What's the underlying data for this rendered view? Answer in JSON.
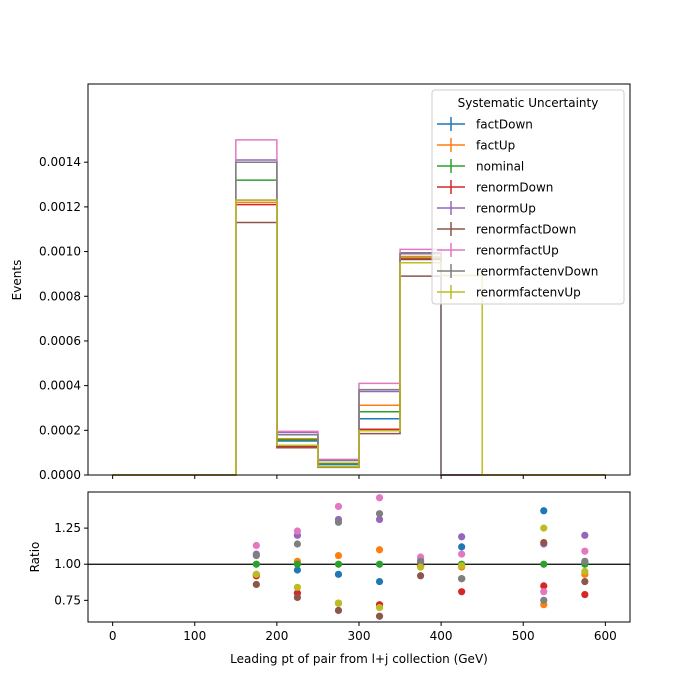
{
  "chart_data": [
    {
      "type": "line",
      "drawstyle": "steps",
      "ylabel": "Events",
      "xlim": [
        -30,
        630
      ],
      "ylim": [
        0,
        0.00175
      ],
      "yticks": [
        0,
        0.0002,
        0.0004,
        0.0006,
        0.0008,
        0.001,
        0.0012,
        0.0014
      ],
      "ytick_labels": [
        "0.0000",
        "0.0002",
        "0.0004",
        "0.0006",
        "0.0008",
        "0.0010",
        "0.0012",
        "0.0014"
      ],
      "bin_edges": [
        0,
        50,
        100,
        150,
        200,
        250,
        300,
        350,
        400,
        450,
        500,
        550,
        600
      ],
      "legend": {
        "title": "Systematic Uncertainty",
        "placement": "top-right"
      },
      "series": [
        {
          "name": "factDown",
          "color": "#1f77b4",
          "values": [
            0,
            0,
            0,
            0.00123,
            0.000152,
            4.65e-05,
            0.000252,
            0.000965,
            0,
            0,
            0,
            0
          ]
        },
        {
          "name": "factUp",
          "color": "#ff7f0e",
          "values": [
            0,
            0,
            0,
            0.00122,
            0.000162,
            5.28e-05,
            0.000312,
            0.000978,
            0,
            0,
            0,
            0
          ]
        },
        {
          "name": "nominal",
          "color": "#2ca02c",
          "values": [
            0,
            0,
            0,
            0.00132,
            0.000158,
            4.98e-05,
            0.000283,
            0.00097,
            0,
            0,
            0,
            0
          ]
        },
        {
          "name": "renormDown",
          "color": "#d62728",
          "values": [
            0,
            0,
            0,
            0.00121,
            0.000127,
            3.63e-05,
            0.000205,
            0.000965,
            0,
            0,
            0,
            0
          ]
        },
        {
          "name": "renormUp",
          "color": "#9467bd",
          "values": [
            0,
            0,
            0,
            0.00141,
            0.00019,
            6.52e-05,
            0.000374,
            0.000995,
            0,
            0,
            0,
            0
          ]
        },
        {
          "name": "renormfactDown",
          "color": "#8c564b",
          "values": [
            0,
            0,
            0,
            0.00113,
            0.000122,
            3.4e-05,
            0.000185,
            0.00089,
            0,
            0,
            0,
            0
          ]
        },
        {
          "name": "renormfactUp",
          "color": "#e377c2",
          "values": [
            0,
            0,
            0,
            0.0015,
            0.000195,
            7e-05,
            0.00041,
            0.00101,
            0,
            0,
            0,
            0
          ]
        },
        {
          "name": "renormfactenvDown",
          "color": "#7f7f7f",
          "values": [
            0,
            0,
            0,
            0.0014,
            0.00018,
            6.5e-05,
            0.000382,
            0.00099,
            0,
            0,
            0,
            0
          ]
        },
        {
          "name": "renormfactenvUp",
          "color": "#bcbd22",
          "values": [
            0,
            0,
            0,
            0.00123,
            0.000133,
            3.65e-05,
            0.000198,
            0.00095,
            0.000893,
            0,
            0,
            0
          ]
        }
      ]
    },
    {
      "type": "scatter",
      "xlabel": "Leading pt of pair from l+j collection (GeV)",
      "ylabel": "Ratio",
      "xlim": [
        -30,
        630
      ],
      "ylim": [
        0.6,
        1.5
      ],
      "xticks": [
        0,
        100,
        200,
        300,
        400,
        500,
        600
      ],
      "xtick_labels": [
        "0",
        "100",
        "200",
        "300",
        "400",
        "500",
        "600"
      ],
      "yticks": [
        0.75,
        1.0,
        1.25
      ],
      "ytick_labels": [
        "0.75",
        "1.00",
        "1.25"
      ],
      "reference_line": 1.0,
      "x": [
        175,
        225,
        275,
        325,
        375,
        425,
        525,
        575
      ],
      "series": [
        {
          "name": "factDown",
          "color": "#1f77b4",
          "values": [
            0.93,
            0.96,
            0.93,
            0.88,
            0.99,
            1.12,
            1.37,
            1.01
          ]
        },
        {
          "name": "factUp",
          "color": "#ff7f0e",
          "values": [
            0.92,
            1.02,
            1.06,
            1.1,
            1.01,
            0.98,
            0.72,
            0.93
          ]
        },
        {
          "name": "nominal",
          "color": "#2ca02c",
          "values": [
            1.0,
            1.0,
            1.0,
            1.0,
            1.0,
            1.0,
            1.0,
            1.0
          ]
        },
        {
          "name": "renormDown",
          "color": "#d62728",
          "values": [
            0.92,
            0.8,
            0.73,
            0.72,
            0.99,
            0.81,
            0.85,
            0.79
          ]
        },
        {
          "name": "renormUp",
          "color": "#9467bd",
          "values": [
            1.07,
            1.2,
            1.31,
            1.31,
            1.03,
            1.19,
            1.14,
            1.2
          ]
        },
        {
          "name": "renormfactDown",
          "color": "#8c564b",
          "values": [
            0.86,
            0.77,
            0.68,
            0.64,
            0.92,
            0.9,
            1.15,
            0.88
          ]
        },
        {
          "name": "renormfactUp",
          "color": "#e377c2",
          "values": [
            1.13,
            1.23,
            1.4,
            1.46,
            1.05,
            1.07,
            0.81,
            1.09
          ]
        },
        {
          "name": "renormfactenvDown",
          "color": "#7f7f7f",
          "values": [
            1.06,
            1.14,
            1.29,
            1.35,
            1.02,
            0.9,
            0.75,
            1.02
          ]
        },
        {
          "name": "renormfactenvUp",
          "color": "#bcbd22",
          "values": [
            0.93,
            0.84,
            0.73,
            0.7,
            0.98,
            0.99,
            1.25,
            0.95
          ]
        }
      ]
    }
  ]
}
